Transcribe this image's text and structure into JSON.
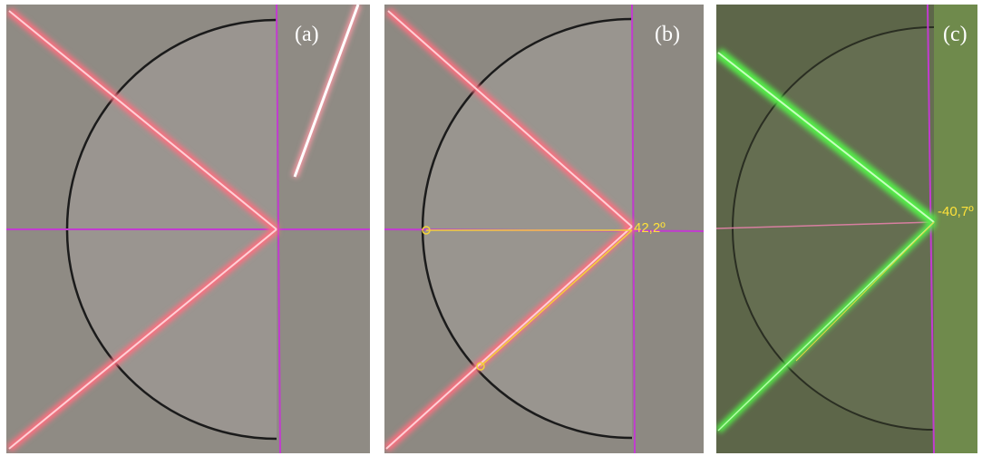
{
  "panels": [
    {
      "label": "(a)"
    },
    {
      "label": "(b)",
      "angle_label": "42,2º"
    },
    {
      "label": "(c)",
      "angle_label": "-40,7º"
    }
  ]
}
